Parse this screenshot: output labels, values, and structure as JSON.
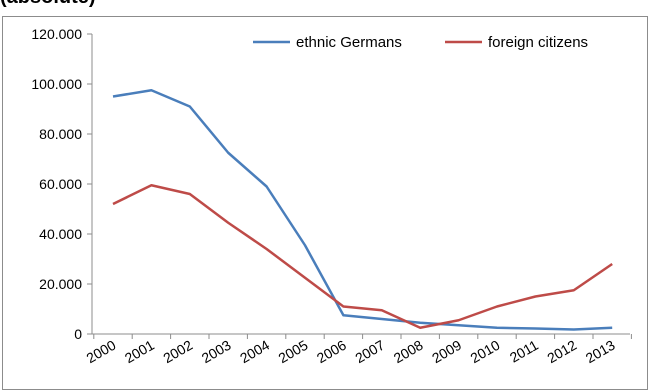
{
  "header": {
    "partial_title": "(absolute)"
  },
  "chart_data": {
    "type": "line",
    "categories": [
      "2000",
      "2001",
      "2002",
      "2003",
      "2004",
      "2005",
      "2006",
      "2007",
      "2008",
      "2009",
      "2010",
      "2011",
      "2012",
      "2013"
    ],
    "series": [
      {
        "name": "ethnic Germans",
        "color": "#4a7ebb",
        "values": [
          95000,
          97500,
          91000,
          72500,
          59000,
          35500,
          7500,
          6000,
          4500,
          3500,
          2500,
          2200,
          1800,
          2500
        ]
      },
      {
        "name": "foreign citizens",
        "color": "#be4b48",
        "values": [
          52000,
          59500,
          56000,
          44500,
          34000,
          22500,
          11000,
          9500,
          2500,
          5500,
          11000,
          15000,
          17500,
          28000
        ]
      }
    ],
    "y_ticks": [
      "0",
      "20.000",
      "40.000",
      "60.000",
      "80.000",
      "100.000",
      "120.000"
    ],
    "ylim": [
      0,
      120000
    ],
    "legend_position": "top-right",
    "grid": false
  }
}
